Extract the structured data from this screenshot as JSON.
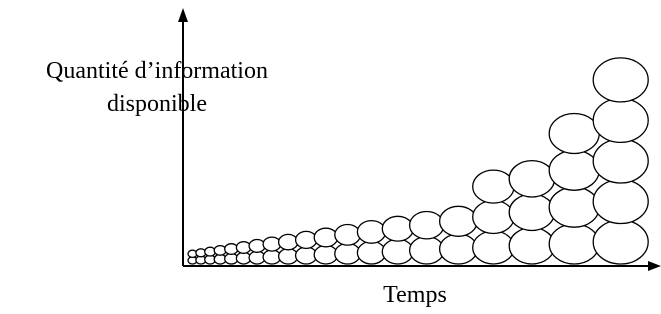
{
  "axis_labels": {
    "y": {
      "lines": [
        "Quantité d’information",
        "disponible"
      ]
    },
    "x": "Temps"
  }
}
